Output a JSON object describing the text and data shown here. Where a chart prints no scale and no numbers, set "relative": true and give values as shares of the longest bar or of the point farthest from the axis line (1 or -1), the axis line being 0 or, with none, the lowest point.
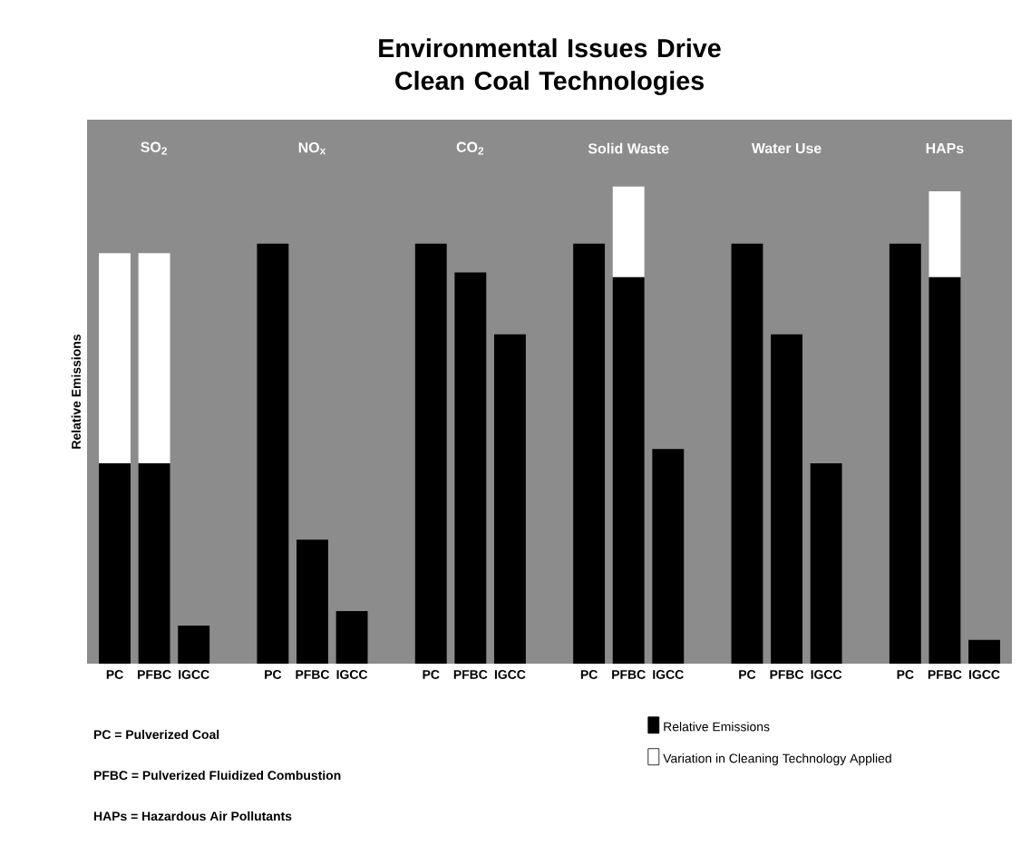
{
  "chart_data": {
    "type": "bar",
    "title": "Environmental Issues Drive Clean Coal Technologies",
    "ylabel": "Relative Emissions",
    "relative": true,
    "stacked": true,
    "legend": "bottom right",
    "categories": [
      "PC",
      "PFBC",
      "IGCC",
      null,
      "PC",
      "PFBC",
      "IGCC",
      null,
      "PC",
      "PFBC",
      "IGCC",
      null,
      "PC",
      "PFBC",
      "IGCC",
      null,
      "PC",
      "PFBC",
      "IGCC",
      null,
      "PC",
      "PFBC",
      "IGCC"
    ],
    "series": [
      {
        "name": "Relative Emissions",
        "color": "#000000",
        "values": [
          0.42,
          0.42,
          0.08,
          null,
          0.88,
          0.26,
          0.11,
          null,
          0.88,
          0.82,
          0.69,
          null,
          0.88,
          0.81,
          0.45,
          null,
          0.88,
          0.69,
          0.42,
          null,
          0.88,
          0.81,
          0.05
        ]
      },
      {
        "name": "Variation in Cleaning Technology Applied",
        "color": "#ffffff",
        "values": [
          0.44,
          0.44,
          0,
          null,
          0,
          0,
          0,
          null,
          0,
          0,
          0,
          null,
          0,
          0.19,
          0,
          null,
          0,
          0,
          0,
          null,
          0,
          0.18,
          0
        ]
      }
    ],
    "annotations": [
      "SO$_{2}$",
      "NO$_{x}$",
      "CO$_{2}$",
      "Solid Waste",
      "Water Use",
      "HAPs",
      "PC = Pulverized Coal",
      "PFBC = Pulverized Fluidized Combustion",
      "HAPs = Hazardous Air Pollutants"
    ]
  }
}
